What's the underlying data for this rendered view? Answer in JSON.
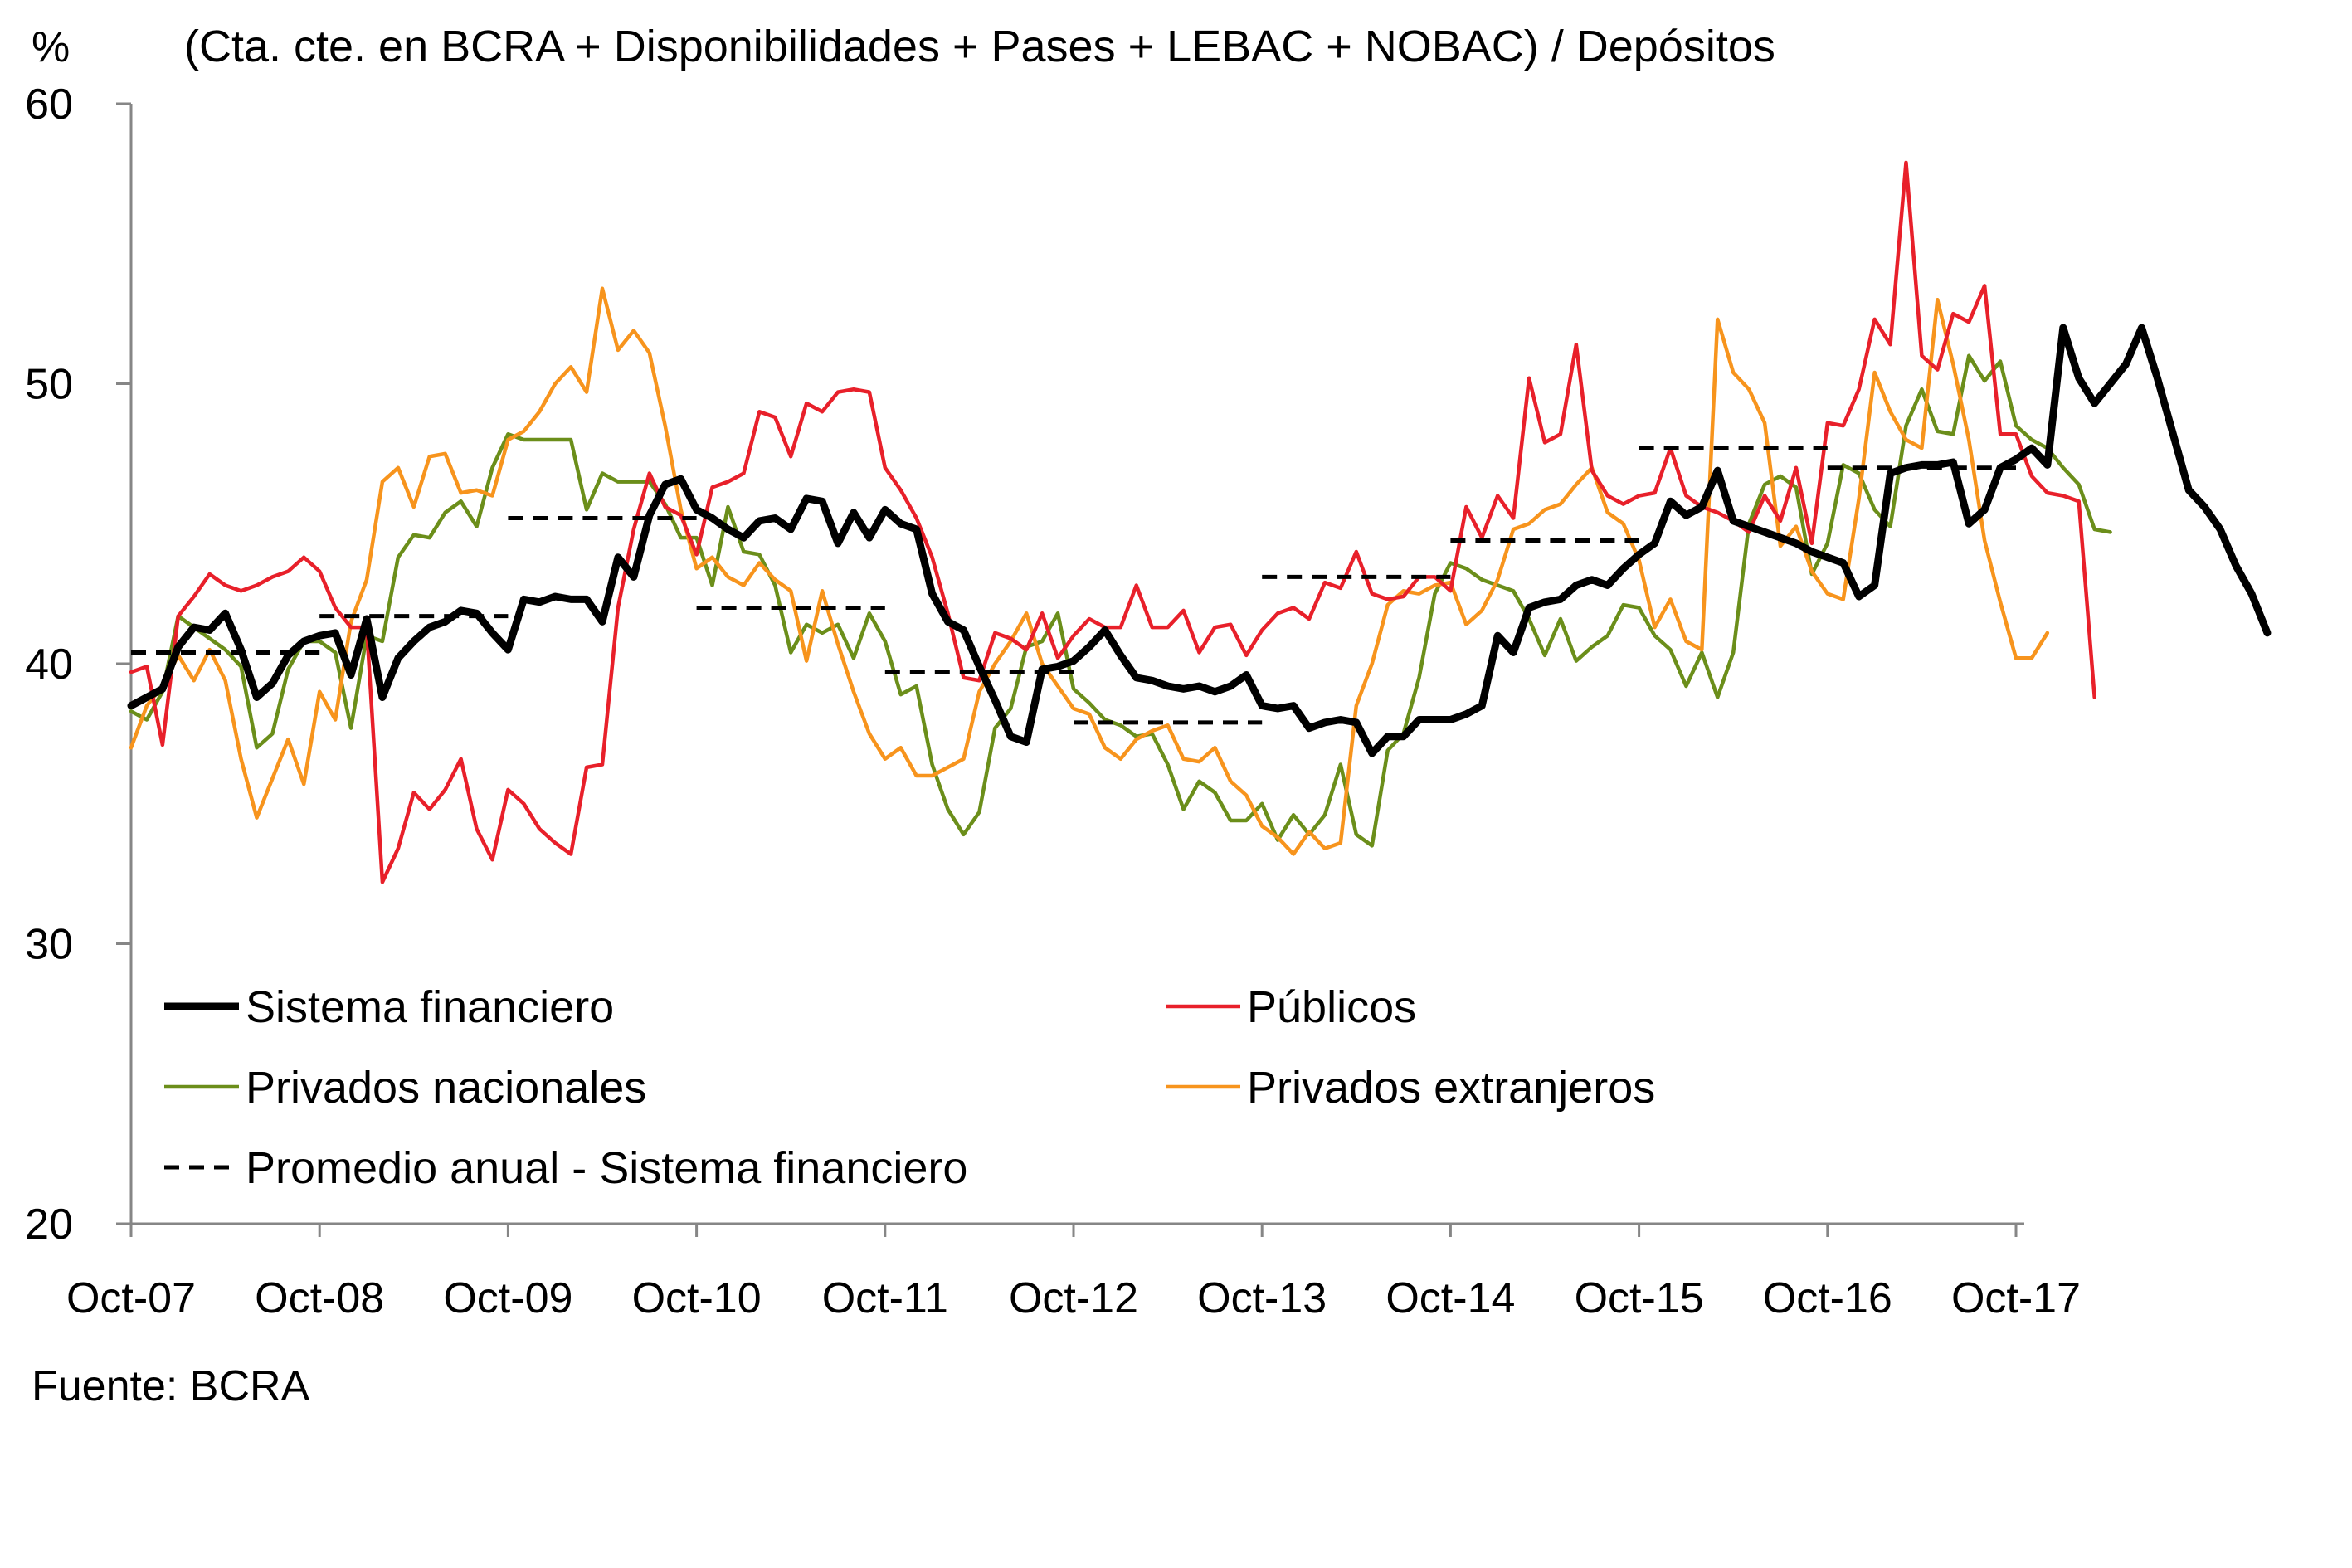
{
  "chart_data": {
    "type": "line",
    "title": "(Cta. cte. en BCRA + Disponibilidades + Pases + LEBAC + NOBAC) / Depósitos",
    "ylabel": "%",
    "ylim": [
      20,
      60
    ],
    "y_ticks": [
      "20",
      "30",
      "40",
      "50",
      "60"
    ],
    "x_ticks": [
      "Oct-07",
      "Oct-08",
      "Oct-09",
      "Oct-10",
      "Oct-11",
      "Oct-12",
      "Oct-13",
      "Oct-14",
      "Oct-15",
      "Oct-16",
      "Oct-17"
    ],
    "x_range": [
      0,
      120
    ],
    "source": "Fuente: BCRA",
    "legend_position": "bottom-left inside",
    "series": [
      {
        "name": "Sistema financiero",
        "color": "#000000",
        "style": "solid-thick",
        "values": [
          38.5,
          38.8,
          39.1,
          40.6,
          41.3,
          41.2,
          41.8,
          40.5,
          38.8,
          39.3,
          40.3,
          40.8,
          41.0,
          41.1,
          39.6,
          41.6,
          38.8,
          40.2,
          40.8,
          41.3,
          41.5,
          41.9,
          41.8,
          41.1,
          40.5,
          42.3,
          42.2,
          42.4,
          42.3,
          42.3,
          41.5,
          43.8,
          43.1,
          45.3,
          46.4,
          46.6,
          45.5,
          45.2,
          44.8,
          44.5,
          45.1,
          45.2,
          44.8,
          45.9,
          45.8,
          44.3,
          45.4,
          44.5,
          45.5,
          45.0,
          44.8,
          42.5,
          41.5,
          41.2,
          39.9,
          38.7,
          37.4,
          37.2,
          39.8,
          39.9,
          40.1,
          40.6,
          41.2,
          40.3,
          39.5,
          39.4,
          39.2,
          39.1,
          39.2,
          39.0,
          39.2,
          39.6,
          38.5,
          38.4,
          38.5,
          37.7,
          37.9,
          38.0,
          37.9,
          36.8,
          37.4,
          37.4,
          38.0,
          38.0,
          38.0,
          38.2,
          38.5,
          41.0,
          40.4,
          42.0,
          42.2,
          42.3,
          42.8,
          43.0,
          42.8,
          43.4,
          43.9,
          44.3,
          45.8,
          45.3,
          45.6,
          46.9,
          45.1,
          44.9,
          44.7,
          44.5,
          44.3,
          44.0,
          43.8,
          43.6,
          42.4,
          42.8,
          46.8,
          47.0,
          47.1,
          47.1,
          47.2,
          45.0,
          45.5,
          47.0,
          47.3,
          47.7,
          47.1,
          52.0,
          50.2,
          49.3,
          50.0,
          50.7,
          52.0,
          50.2,
          48.2,
          46.2,
          45.6,
          44.8,
          43.5,
          42.5,
          41.1
        ]
      },
      {
        "name": "Públicos",
        "color": "#e8202a",
        "style": "solid",
        "values": [
          39.7,
          39.9,
          37.1,
          41.7,
          42.4,
          43.2,
          42.8,
          42.6,
          42.8,
          43.1,
          43.3,
          43.8,
          43.3,
          42.0,
          41.3,
          41.3,
          32.2,
          33.4,
          35.4,
          34.8,
          35.5,
          36.6,
          34.1,
          33.0,
          35.5,
          35.0,
          34.1,
          33.6,
          33.2,
          36.3,
          36.4,
          42.0,
          44.8,
          46.8,
          45.6,
          45.3,
          43.9,
          46.3,
          46.5,
          46.8,
          49.0,
          48.8,
          47.4,
          49.3,
          49.0,
          49.7,
          49.8,
          49.7,
          47.0,
          46.2,
          45.2,
          43.8,
          41.8,
          39.5,
          39.4,
          41.1,
          40.9,
          40.5,
          41.8,
          40.2,
          41.0,
          41.6,
          41.3,
          41.3,
          42.8,
          41.3,
          41.3,
          41.9,
          40.4,
          41.3,
          41.4,
          40.3,
          41.2,
          41.8,
          42.0,
          41.6,
          42.9,
          42.7,
          44.0,
          42.5,
          42.3,
          42.4,
          43.1,
          43.1,
          42.6,
          45.6,
          44.5,
          46.0,
          45.2,
          50.2,
          47.9,
          48.2,
          51.4,
          46.9,
          46.0,
          45.7,
          46.0,
          46.1,
          47.7,
          46.0,
          45.6,
          45.4,
          45.1,
          44.7,
          46.0,
          45.1,
          47.0,
          44.3,
          48.6,
          48.5,
          49.8,
          52.3,
          51.4,
          57.9,
          51.0,
          50.5,
          52.5,
          52.2,
          53.5,
          48.2,
          48.2,
          46.7,
          46.1,
          46.0,
          45.8,
          38.8
        ]
      },
      {
        "name": "Privados nacionales",
        "color": "#6b8e1a",
        "style": "solid",
        "values": [
          38.3,
          38.0,
          39.0,
          41.7,
          41.3,
          40.9,
          40.5,
          39.9,
          37.0,
          37.5,
          39.8,
          40.8,
          40.8,
          40.4,
          37.7,
          41.0,
          40.8,
          43.8,
          44.6,
          44.5,
          45.4,
          45.8,
          44.9,
          47.0,
          48.2,
          48.0,
          48.0,
          48.0,
          48.0,
          45.5,
          46.8,
          46.5,
          46.5,
          46.5,
          45.7,
          44.5,
          44.5,
          42.8,
          45.6,
          44.0,
          43.9,
          42.8,
          40.4,
          41.4,
          41.1,
          41.4,
          40.2,
          41.8,
          40.8,
          38.9,
          39.2,
          36.4,
          34.8,
          33.9,
          34.7,
          37.7,
          38.4,
          40.6,
          40.8,
          41.8,
          39.1,
          38.6,
          38.0,
          37.8,
          37.4,
          37.5,
          36.4,
          34.8,
          35.8,
          35.4,
          34.4,
          34.4,
          35.0,
          33.7,
          34.6,
          33.9,
          34.6,
          36.4,
          33.9,
          33.5,
          36.9,
          37.5,
          39.5,
          42.5,
          43.6,
          43.4,
          43.0,
          42.8,
          42.6,
          41.6,
          40.3,
          41.6,
          40.1,
          40.6,
          41.0,
          42.1,
          42.0,
          41.0,
          40.5,
          39.2,
          40.4,
          38.8,
          40.4,
          45.0,
          46.4,
          46.7,
          46.3,
          43.2,
          44.3,
          47.1,
          46.8,
          45.5,
          44.9,
          48.5,
          49.8,
          48.3,
          48.2,
          51.0,
          50.1,
          50.8,
          48.5,
          48.0,
          47.7,
          47.0,
          46.4,
          44.8,
          44.7
        ]
      },
      {
        "name": "Privados extranjeros",
        "color": "#f7941d",
        "style": "solid",
        "values": [
          37.0,
          38.5,
          39.2,
          40.3,
          39.4,
          40.5,
          39.4,
          36.6,
          34.5,
          35.9,
          37.3,
          35.7,
          39.0,
          38.0,
          41.5,
          43.0,
          46.5,
          47.0,
          45.6,
          47.4,
          47.5,
          46.1,
          46.2,
          46.0,
          48.0,
          48.3,
          49.0,
          50.0,
          50.6,
          49.7,
          53.4,
          51.2,
          51.9,
          51.1,
          48.5,
          45.5,
          43.4,
          43.8,
          43.1,
          42.8,
          43.6,
          43.0,
          42.6,
          40.1,
          42.6,
          40.7,
          39.0,
          37.5,
          36.6,
          37.0,
          36.0,
          36.0,
          36.3,
          36.6,
          39.0,
          40.0,
          40.8,
          41.8,
          40.0,
          39.2,
          38.4,
          38.2,
          37.0,
          36.6,
          37.3,
          37.6,
          37.8,
          36.6,
          36.5,
          37.0,
          35.8,
          35.3,
          34.2,
          33.8,
          33.2,
          34.0,
          33.4,
          33.6,
          38.5,
          40.0,
          42.1,
          42.6,
          42.5,
          42.8,
          42.9,
          41.4,
          41.9,
          43.0,
          44.8,
          45.0,
          45.5,
          45.7,
          46.4,
          47.0,
          45.4,
          45.0,
          43.7,
          41.3,
          42.3,
          40.8,
          40.5,
          52.3,
          50.4,
          49.8,
          48.6,
          44.2,
          44.9,
          43.3,
          42.5,
          42.3,
          45.9,
          50.4,
          49.0,
          48.0,
          47.7,
          53.0,
          50.7,
          48.0,
          44.4,
          42.2,
          40.2,
          40.2,
          41.1
        ]
      },
      {
        "name": "Promedio anual - Sistema financiero",
        "color": "#000000",
        "style": "dashed",
        "segments": [
          {
            "x": [
              0,
              12
            ],
            "y": 40.4
          },
          {
            "x": [
              12,
              24
            ],
            "y": 41.7
          },
          {
            "x": [
              24,
              36
            ],
            "y": 45.2
          },
          {
            "x": [
              36,
              48
            ],
            "y": 42.0
          },
          {
            "x": [
              48,
              60
            ],
            "y": 39.7
          },
          {
            "x": [
              60,
              72
            ],
            "y": 37.9
          },
          {
            "x": [
              72,
              84
            ],
            "y": 43.1
          },
          {
            "x": [
              84,
              96
            ],
            "y": 44.4
          },
          {
            "x": [
              96,
              108
            ],
            "y": 47.7
          },
          {
            "x": [
              108,
              120
            ],
            "y": 47.0
          }
        ]
      }
    ]
  }
}
